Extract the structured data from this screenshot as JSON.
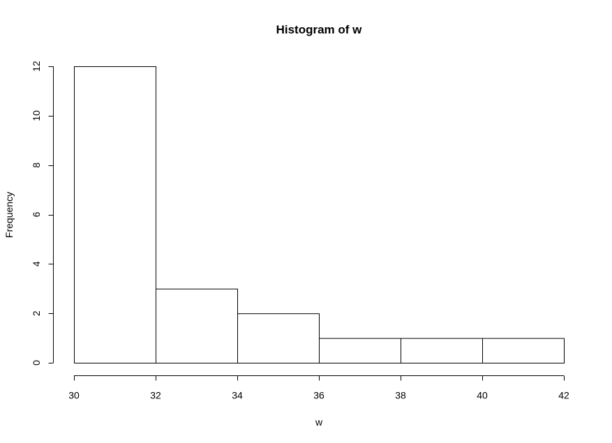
{
  "chart_data": {
    "type": "bar",
    "title": "Histogram of w",
    "xlabel": "w",
    "ylabel": "Frequency",
    "bins": [
      {
        "from": 30,
        "to": 32,
        "count": 12
      },
      {
        "from": 32,
        "to": 34,
        "count": 3
      },
      {
        "from": 34,
        "to": 36,
        "count": 2
      },
      {
        "from": 36,
        "to": 38,
        "count": 1
      },
      {
        "from": 38,
        "to": 40,
        "count": 1
      },
      {
        "from": 40,
        "to": 42,
        "count": 1
      }
    ],
    "xlim": [
      30,
      42
    ],
    "ylim": [
      0,
      12
    ],
    "x_ticks": [
      30,
      32,
      34,
      36,
      38,
      40,
      42
    ],
    "y_ticks": [
      0,
      2,
      4,
      6,
      8,
      10,
      12
    ],
    "grid": false,
    "bar_fill": "#ffffff",
    "bar_stroke": "#000000"
  }
}
